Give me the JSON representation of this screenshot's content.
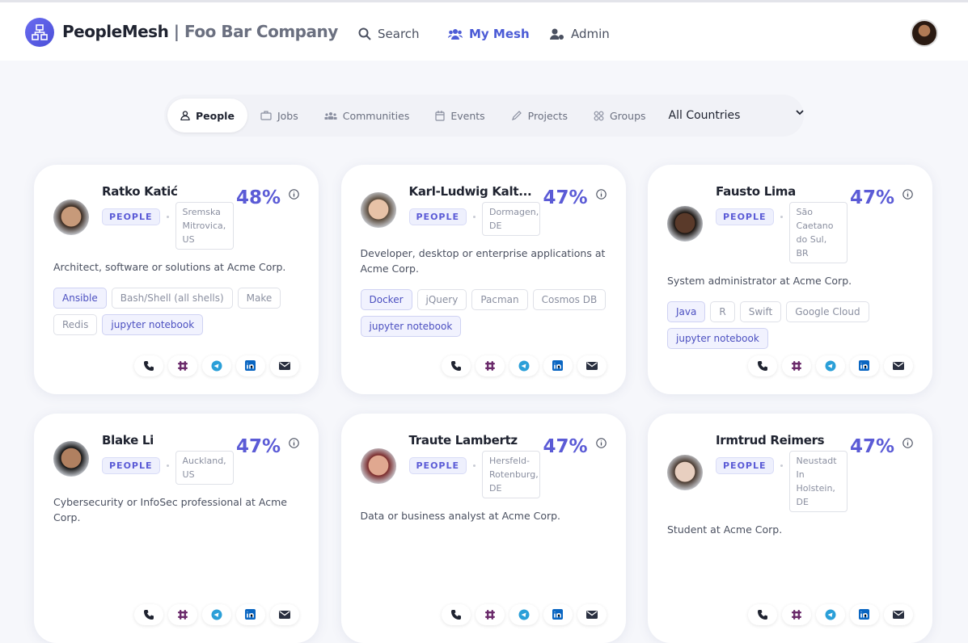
{
  "header": {
    "brand": "PeopleMesh",
    "company": "| Foo Bar Company",
    "nav": [
      "Search",
      "My Mesh",
      "Admin"
    ]
  },
  "filters": {
    "tabs": [
      "People",
      "Jobs",
      "Communities",
      "Events",
      "Projects",
      "Groups"
    ],
    "country": "All Countries"
  },
  "cards": [
    {
      "name": "Ratko Katić",
      "match": "48%",
      "tag": "PEOPLE",
      "location": "Sremska Mitrovica, US",
      "role": "Architect, software or solutions at Acme Corp.",
      "skills": [
        {
          "name": "Ansible",
          "matched": true
        },
        {
          "name": "Bash/Shell (all shells)",
          "matched": false
        },
        {
          "name": "Make",
          "matched": false
        },
        {
          "name": "Redis",
          "matched": false
        },
        {
          "name": "jupyter notebook",
          "matched": true
        }
      ]
    },
    {
      "name": "Karl-Ludwig Kalt...",
      "match": "47%",
      "tag": "PEOPLE",
      "location": "Dormagen, DE",
      "role": "Developer, desktop or enterprise applications at Acme Corp.",
      "skills": [
        {
          "name": "Docker",
          "matched": true
        },
        {
          "name": "jQuery",
          "matched": false
        },
        {
          "name": "Pacman",
          "matched": false
        },
        {
          "name": "Cosmos DB",
          "matched": false
        },
        {
          "name": "jupyter notebook",
          "matched": true
        }
      ]
    },
    {
      "name": "Fausto Lima",
      "match": "47%",
      "tag": "PEOPLE",
      "location": "São Caetano do Sul, BR",
      "role": "System administrator at Acme Corp.",
      "skills": [
        {
          "name": "Java",
          "matched": true
        },
        {
          "name": "R",
          "matched": false
        },
        {
          "name": "Swift",
          "matched": false
        },
        {
          "name": "Google Cloud",
          "matched": false
        },
        {
          "name": "jupyter notebook",
          "matched": true
        }
      ]
    },
    {
      "name": "Blake Li",
      "match": "47%",
      "tag": "PEOPLE",
      "location": "Auckland, US",
      "role": "Cybersecurity or InfoSec professional at Acme Corp.",
      "skills": []
    },
    {
      "name": "Traute Lambertz",
      "match": "47%",
      "tag": "PEOPLE",
      "location": "Hersfeld-Rotenburg, DE",
      "role": "Data or business analyst at Acme Corp.",
      "skills": []
    },
    {
      "name": "Irmtrud Reimers",
      "match": "47%",
      "tag": "PEOPLE",
      "location": "Neustadt In Holstein, DE",
      "role": "Student at Acme Corp.",
      "skills": []
    }
  ]
}
